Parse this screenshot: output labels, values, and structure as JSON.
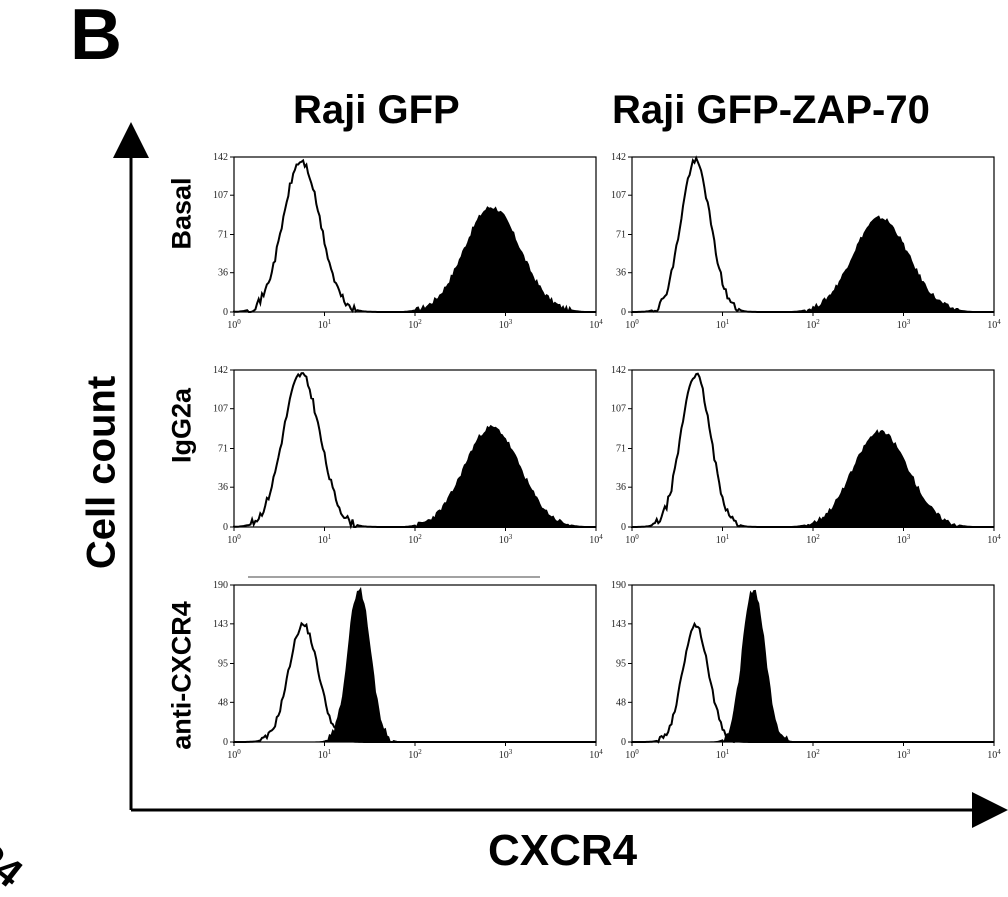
{
  "panel_letter": "B",
  "columns": [
    "Raji GFP",
    "Raji GFP-ZAP-70"
  ],
  "rows": [
    "Basal",
    "IgG2a",
    "anti-CXCR4"
  ],
  "ylabel": "Cell count",
  "xlabel": "CXCR4",
  "corner_fragment": "R4",
  "chart_data": {
    "type": "area",
    "title": "",
    "xlabel": "CXCR4",
    "ylabel": "Cell count",
    "x_scale": "log",
    "x_tick_labels": [
      "10^0",
      "10^1",
      "10^2",
      "10^3",
      "10^4"
    ],
    "xlim": [
      1,
      10000
    ],
    "panels": [
      {
        "row": "Basal",
        "column": "Raji GFP",
        "ylim": [
          0,
          142
        ],
        "y_ticks": [
          0,
          36,
          71,
          107,
          142
        ],
        "unfilled": {
          "peak_x": 5.5,
          "peak_y": 138,
          "log_width": 0.2
        },
        "filled": {
          "peak_x": 700,
          "peak_y": 96,
          "log_width": 0.3
        }
      },
      {
        "row": "Basal",
        "column": "Raji GFP-ZAP-70",
        "ylim": [
          0,
          142
        ],
        "y_ticks": [
          0,
          36,
          71,
          107,
          142
        ],
        "unfilled": {
          "peak_x": 5.0,
          "peak_y": 138,
          "log_width": 0.16
        },
        "filled": {
          "peak_x": 550,
          "peak_y": 86,
          "log_width": 0.3
        }
      },
      {
        "row": "IgG2a",
        "column": "Raji GFP",
        "ylim": [
          0,
          142
        ],
        "y_ticks": [
          0,
          36,
          71,
          107,
          142
        ],
        "unfilled": {
          "peak_x": 5.5,
          "peak_y": 138,
          "log_width": 0.2
        },
        "filled": {
          "peak_x": 700,
          "peak_y": 90,
          "log_width": 0.3
        }
      },
      {
        "row": "IgG2a",
        "column": "Raji GFP-ZAP-70",
        "ylim": [
          0,
          142
        ],
        "y_ticks": [
          0,
          36,
          71,
          107,
          142
        ],
        "unfilled": {
          "peak_x": 5.0,
          "peak_y": 138,
          "log_width": 0.16
        },
        "filled": {
          "peak_x": 550,
          "peak_y": 86,
          "log_width": 0.3
        }
      },
      {
        "row": "anti-CXCR4",
        "column": "Raji GFP",
        "ylim": [
          0,
          190
        ],
        "y_ticks": [
          0,
          48,
          95,
          143,
          190
        ],
        "unfilled": {
          "peak_x": 5.8,
          "peak_y": 142,
          "log_width": 0.16
        },
        "filled": {
          "peak_x": 24,
          "peak_y": 185,
          "log_width": 0.12
        }
      },
      {
        "row": "anti-CXCR4",
        "column": "Raji GFP-ZAP-70",
        "ylim": [
          0,
          190
        ],
        "y_ticks": [
          0,
          48,
          95,
          143,
          190
        ],
        "unfilled": {
          "peak_x": 5.0,
          "peak_y": 142,
          "log_width": 0.14
        },
        "filled": {
          "peak_x": 22,
          "peak_y": 185,
          "log_width": 0.12
        }
      }
    ]
  }
}
